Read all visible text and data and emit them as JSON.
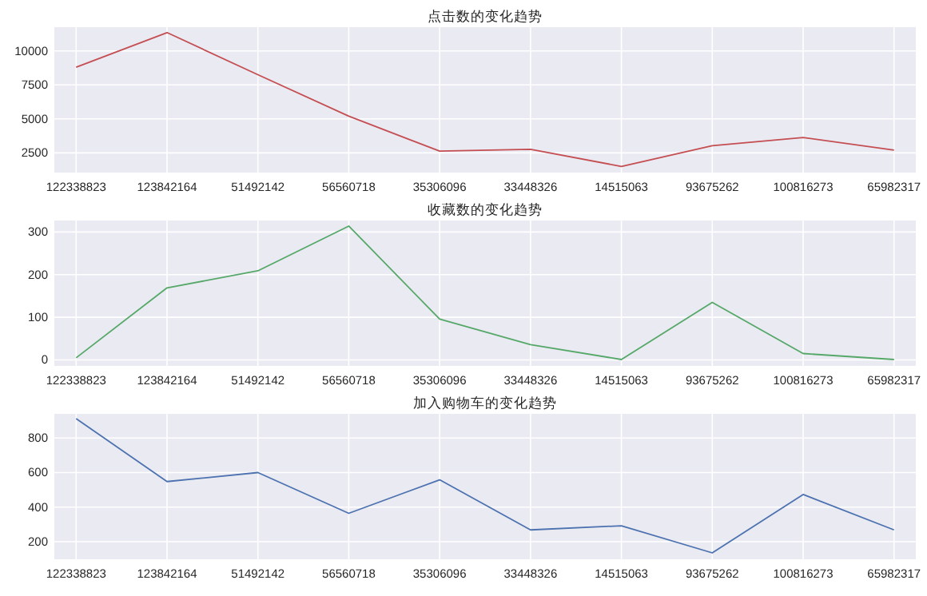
{
  "chart_data": [
    {
      "type": "line",
      "title": "点击数的变化趋势",
      "categories": [
        "122338823",
        "123842164",
        "51492142",
        "56560718",
        "35306096",
        "33448326",
        "14515063",
        "93675262",
        "100816273",
        "65982317"
      ],
      "series": [
        {
          "color": "#c44e52",
          "values": [
            8800,
            11350,
            8250,
            5200,
            2630,
            2760,
            1500,
            3030,
            3630,
            2700
          ]
        }
      ],
      "ylim": [
        1050,
        11750
      ],
      "yticks": [
        2500,
        5000,
        7500,
        10000
      ],
      "grid": true
    },
    {
      "type": "line",
      "title": "收藏数的变化趋势",
      "categories": [
        "122338823",
        "123842164",
        "51492142",
        "56560718",
        "35306096",
        "33448326",
        "14515063",
        "93675262",
        "100816273",
        "65982317"
      ],
      "series": [
        {
          "color": "#55a868",
          "values": [
            5,
            169,
            209,
            314,
            96,
            36,
            1,
            135,
            15,
            1
          ]
        }
      ],
      "ylim": [
        -14,
        327
      ],
      "yticks": [
        0,
        100,
        200,
        300
      ],
      "grid": true
    },
    {
      "type": "line",
      "title": "加入购物车的变化趋势",
      "categories": [
        "122338823",
        "123842164",
        "51492142",
        "56560718",
        "35306096",
        "33448326",
        "14515063",
        "93675262",
        "100816273",
        "65982317"
      ],
      "series": [
        {
          "color": "#4c72b0",
          "values": [
            912,
            548,
            600,
            364,
            558,
            268,
            292,
            135,
            473,
            268
          ]
        }
      ],
      "ylim": [
        98,
        940
      ],
      "yticks": [
        200,
        400,
        600,
        800
      ],
      "grid": true
    }
  ]
}
